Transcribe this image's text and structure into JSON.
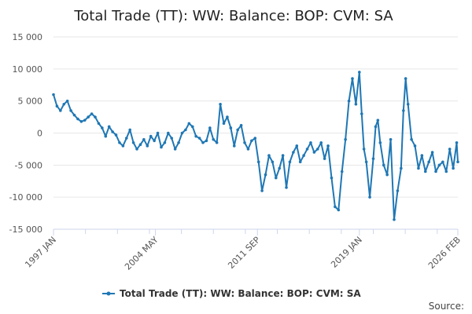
{
  "chart_data": {
    "type": "line",
    "title": "Total Trade (TT): WW: Balance: BOP: CVM: SA",
    "xlabel": "",
    "ylabel": "",
    "ylim": [
      -15000,
      15000
    ],
    "yticks": [
      "15 000",
      "10 000",
      "5 000",
      "0",
      "-5 000",
      "-10 000",
      "-15 000"
    ],
    "ytick_values": [
      15000,
      10000,
      5000,
      0,
      -5000,
      -10000,
      -15000
    ],
    "xlim": [
      1997.0,
      2026.083
    ],
    "xticks": [
      "1997 JAN",
      "2004 MAY",
      "2011 SEP",
      "2019 JAN",
      "2026 FEB"
    ],
    "xtick_values": [
      1997.0,
      2004.333,
      2011.667,
      2019.0,
      2026.083
    ],
    "grid": true,
    "legend_position": "bottom",
    "series": [
      {
        "name": "Total Trade (TT): WW: Balance: BOP: CVM: SA",
        "color": "#1f77b4",
        "x": [
          1997.0,
          1997.25,
          1997.5,
          1997.75,
          1998.0,
          1998.25,
          1998.5,
          1998.75,
          1999.0,
          1999.25,
          1999.5,
          1999.75,
          2000.0,
          2000.25,
          2000.5,
          2000.75,
          2001.0,
          2001.25,
          2001.5,
          2001.75,
          2002.0,
          2002.25,
          2002.5,
          2002.75,
          2003.0,
          2003.25,
          2003.5,
          2003.75,
          2004.0,
          2004.25,
          2004.5,
          2004.75,
          2005.0,
          2005.25,
          2005.5,
          2005.75,
          2006.0,
          2006.25,
          2006.5,
          2006.75,
          2007.0,
          2007.25,
          2007.5,
          2007.75,
          2008.0,
          2008.25,
          2008.5,
          2008.75,
          2009.0,
          2009.25,
          2009.5,
          2009.75,
          2010.0,
          2010.25,
          2010.5,
          2010.75,
          2011.0,
          2011.25,
          2011.5,
          2011.75,
          2012.0,
          2012.25,
          2012.5,
          2012.75,
          2013.0,
          2013.25,
          2013.5,
          2013.75,
          2014.0,
          2014.25,
          2014.5,
          2014.75,
          2015.0,
          2015.25,
          2015.5,
          2015.75,
          2016.0,
          2016.25,
          2016.5,
          2016.75,
          2017.0,
          2017.25,
          2017.5,
          2017.75,
          2018.0,
          2018.25,
          2018.5,
          2018.75,
          2019.0,
          2019.17,
          2019.33,
          2019.5,
          2019.75,
          2020.0,
          2020.17,
          2020.33,
          2020.5,
          2020.75,
          2021.0,
          2021.25,
          2021.5,
          2021.75,
          2022.0,
          2022.17,
          2022.33,
          2022.5,
          2022.75,
          2023.0,
          2023.25,
          2023.5,
          2023.75,
          2024.0,
          2024.25,
          2024.5,
          2024.75,
          2025.0,
          2025.25,
          2025.5,
          2025.75,
          2026.0,
          2026.083
        ],
        "values": [
          6000,
          4200,
          3500,
          4500,
          5000,
          3500,
          2800,
          2200,
          1800,
          2000,
          2500,
          3000,
          2500,
          1500,
          800,
          -500,
          1000,
          200,
          -300,
          -1500,
          -2000,
          -800,
          500,
          -1500,
          -2500,
          -1800,
          -1000,
          -2000,
          -500,
          -1200,
          0,
          -2200,
          -1500,
          0,
          -800,
          -2500,
          -1500,
          0,
          500,
          1500,
          1000,
          -500,
          -800,
          -1500,
          -1200,
          800,
          -1000,
          -1500,
          4500,
          1500,
          2500,
          800,
          -2000,
          500,
          1200,
          -1500,
          -2500,
          -1200,
          -800,
          -4500,
          -9000,
          -6500,
          -3500,
          -4500,
          -7000,
          -5500,
          -3500,
          -8500,
          -4500,
          -3000,
          -2000,
          -4500,
          -3500,
          -2500,
          -1500,
          -3000,
          -2500,
          -1500,
          -4000,
          -2000,
          -7000,
          -11500,
          -12000,
          -6000,
          -1000,
          5000,
          8500,
          4500,
          9500,
          3000,
          -2500,
          -4500,
          -10000,
          -4000,
          1000,
          2000,
          -1500,
          -5000,
          -6500,
          -1000,
          -13500,
          -9000,
          -5500,
          3500,
          8500,
          4500,
          -1000,
          -2000,
          -5500,
          -3500,
          -6000,
          -4500,
          -3000,
          -6000,
          -5000,
          -4500,
          -6000,
          -2500,
          -5500,
          -1500,
          -4500
        ]
      }
    ],
    "source_label": "Source:"
  }
}
